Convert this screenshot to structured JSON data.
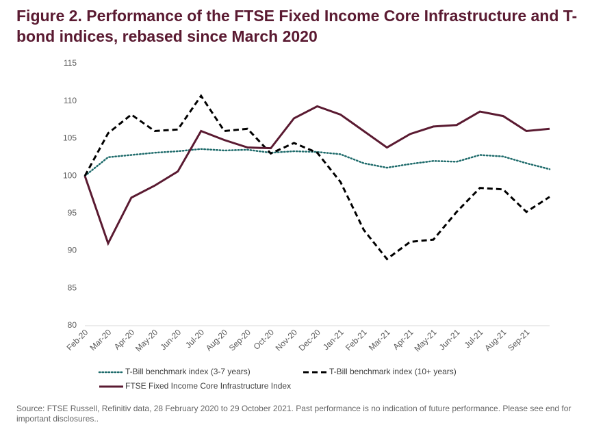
{
  "chart_data": {
    "type": "line",
    "title": "Figure 2. Performance of the FTSE Fixed Income Core Infrastructure and T-bond indices, rebased since March 2020",
    "source": "Source: FTSE Russell, Refinitiv data, 28 February 2020 to 29 October 2021. Past performance is no indication of future performance. Please see end for important disclosures..",
    "categories": [
      "Feb-20",
      "Mar-20",
      "Apr-20",
      "May-20",
      "Jun-20",
      "Jul-20",
      "Aug-20",
      "Sep-20",
      "Oct-20",
      "Nov-20",
      "Dec-20",
      "Jan-21",
      "Feb-21",
      "Mar-21",
      "Apr-21",
      "May-21",
      "Jun-21",
      "Jul-21",
      "Aug-21",
      "Sep-21",
      null
    ],
    "series": [
      {
        "name": "T-Bill benchmark index (3-7 years)",
        "color": "#1e6b6b",
        "style": "dotted",
        "values": [
          100,
          102.5,
          102.8,
          103.1,
          103.3,
          103.6,
          103.4,
          103.5,
          103.1,
          103.3,
          103.2,
          102.9,
          101.7,
          101.1,
          101.6,
          102.0,
          101.9,
          102.8,
          102.6,
          101.7,
          100.9
        ]
      },
      {
        "name": "T-Bill benchmark index (10+ years)",
        "color": "#000000",
        "style": "dashed",
        "values": [
          100,
          105.7,
          108.2,
          106.0,
          106.2,
          110.7,
          106.0,
          106.3,
          103.0,
          104.4,
          103.1,
          99.2,
          92.8,
          88.9,
          91.2,
          91.5,
          95.2,
          98.4,
          98.2,
          95.2,
          97.2
        ]
      },
      {
        "name": "FTSE Fixed Income Core Infrastructure Index",
        "color": "#5a1a31",
        "style": "solid",
        "values": [
          100,
          91.0,
          97.1,
          98.7,
          100.6,
          106.0,
          104.8,
          103.8,
          103.7,
          107.7,
          109.3,
          108.2,
          106.0,
          103.8,
          105.6,
          106.6,
          106.8,
          108.6,
          108.0,
          106.0,
          106.3
        ]
      }
    ],
    "ylim": [
      80,
      115
    ],
    "yticks": [
      80,
      85,
      90,
      95,
      100,
      105,
      110,
      115
    ],
    "grid": false
  }
}
